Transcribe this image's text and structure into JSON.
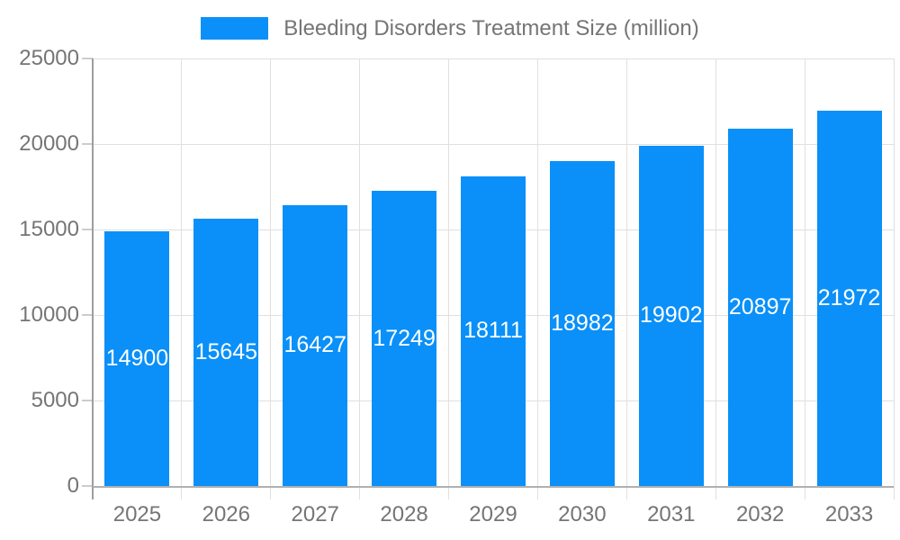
{
  "chart_data": {
    "type": "bar",
    "title": "Bleeding Disorders Treatment Size (million)",
    "categories": [
      "2025",
      "2026",
      "2027",
      "2028",
      "2029",
      "2030",
      "2031",
      "2032",
      "2033"
    ],
    "values": [
      14900,
      15645,
      16427,
      17249,
      18111,
      18982,
      19902,
      20897,
      21972
    ],
    "xlabel": "",
    "ylabel": "",
    "ylim": [
      0,
      25000
    ],
    "yticks": [
      0,
      5000,
      10000,
      15000,
      20000,
      25000
    ],
    "grid": true,
    "legend_position": "top-center",
    "bar_color": "#0a90f8",
    "bar_label_color": "#ffffff",
    "axis_text_color": "#757575",
    "gridline_color": "#e0e0e0",
    "axis_line_color": "#9e9e9e"
  }
}
